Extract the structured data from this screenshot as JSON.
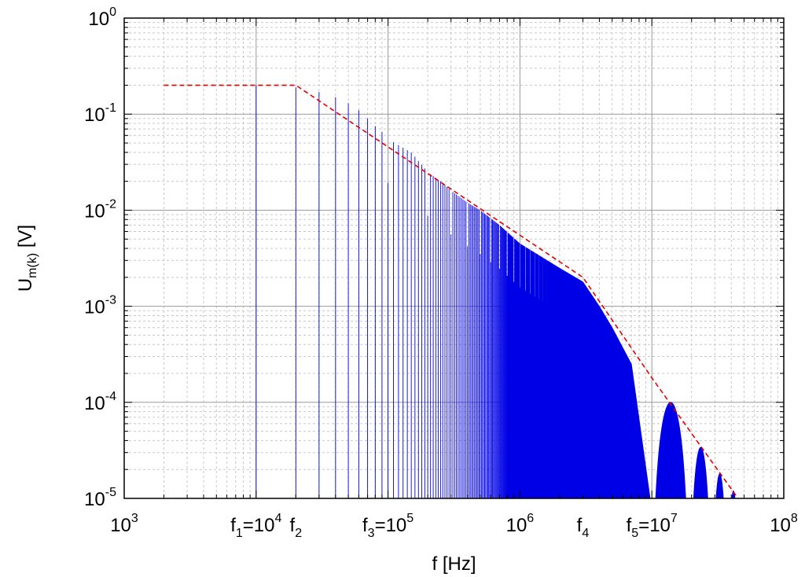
{
  "chart_data": {
    "type": "line",
    "xlabel": "f [Hz]",
    "ylabel_main": "U",
    "ylabel_sub": "m(k)",
    "ylabel_unit": " [V]",
    "x_scale": "log",
    "y_scale": "log",
    "xlim": [
      1000,
      100000000
    ],
    "ylim": [
      1e-05,
      1
    ],
    "grid": true,
    "x_ticks": [
      {
        "value": 1000,
        "base": "10",
        "exp": "3"
      },
      {
        "value": 1000000,
        "base": "10",
        "exp": "6"
      },
      {
        "value": 100000000,
        "base": "10",
        "exp": "8"
      }
    ],
    "y_ticks": [
      {
        "value": 1,
        "base": "10",
        "exp": "0"
      },
      {
        "value": 0.1,
        "base": "10",
        "exp": "-1"
      },
      {
        "value": 0.01,
        "base": "10",
        "exp": "-2"
      },
      {
        "value": 0.001,
        "base": "10",
        "exp": "-3"
      },
      {
        "value": 0.0001,
        "base": "10",
        "exp": "-4"
      },
      {
        "value": 1e-05,
        "base": "10",
        "exp": "-5"
      }
    ],
    "annotations": [
      {
        "x": 10000,
        "parts": [
          [
            "f",
            ""
          ],
          [
            "1",
            "sub"
          ],
          [
            "=10",
            ""
          ],
          [
            "4",
            "sup"
          ]
        ]
      },
      {
        "x": 20000,
        "parts": [
          [
            "f",
            ""
          ],
          [
            "2",
            "sub"
          ]
        ]
      },
      {
        "x": 100000,
        "parts": [
          [
            "f",
            ""
          ],
          [
            "3",
            "sub"
          ],
          [
            "=10",
            ""
          ],
          [
            "5",
            "sup"
          ]
        ]
      },
      {
        "x": 3000000,
        "parts": [
          [
            "f",
            ""
          ],
          [
            "4",
            "sub"
          ]
        ]
      },
      {
        "x": 10000000,
        "parts": [
          [
            "f",
            ""
          ],
          [
            "5",
            "sub"
          ],
          [
            "=10",
            ""
          ],
          [
            "7",
            "sup"
          ]
        ]
      }
    ],
    "series": [
      {
        "kind": "spectrum",
        "color": "#0000e6",
        "fundamental_hz": 10000,
        "line_amplitudes": [
          [
            10000,
            0.2
          ],
          [
            20000,
            0.19
          ],
          [
            30000,
            0.17
          ],
          [
            40000,
            0.15
          ],
          [
            50000,
            0.13
          ],
          [
            60000,
            0.11
          ],
          [
            70000,
            0.09
          ],
          [
            80000,
            0.075
          ],
          [
            90000,
            0.065
          ],
          [
            100000,
            0.055
          ],
          [
            150000,
            0.04
          ],
          [
            200000,
            0.025
          ],
          [
            250000,
            0.02
          ],
          [
            300000,
            0.016
          ],
          [
            400000,
            0.012
          ],
          [
            500000,
            0.01
          ],
          [
            700000,
            0.007
          ],
          [
            1000000,
            0.0045
          ],
          [
            2000000,
            0.0025
          ],
          [
            3000000,
            0.0018
          ],
          [
            4000000,
            0.001
          ],
          [
            5000000,
            0.0006
          ],
          [
            7000000,
            0.00025
          ],
          [
            9700000,
            1e-05
          ]
        ],
        "lobes": [
          {
            "start": 10000000,
            "end": 19300000,
            "peak": 0.0001
          },
          {
            "start": 19300000,
            "end": 28500000,
            "peak": 3.4e-05
          },
          {
            "start": 28500000,
            "end": 37500000,
            "peak": 1.8e-05
          },
          {
            "start": 37500000,
            "end": 46000000,
            "peak": 1.2e-05
          }
        ]
      },
      {
        "kind": "envelope",
        "color": "#e60000",
        "dash": true,
        "points": [
          [
            2000,
            0.2
          ],
          [
            20000,
            0.2
          ],
          [
            3000000,
            0.002
          ],
          [
            10000000,
            0.00018
          ],
          [
            45000000,
            1e-05
          ]
        ]
      }
    ]
  }
}
